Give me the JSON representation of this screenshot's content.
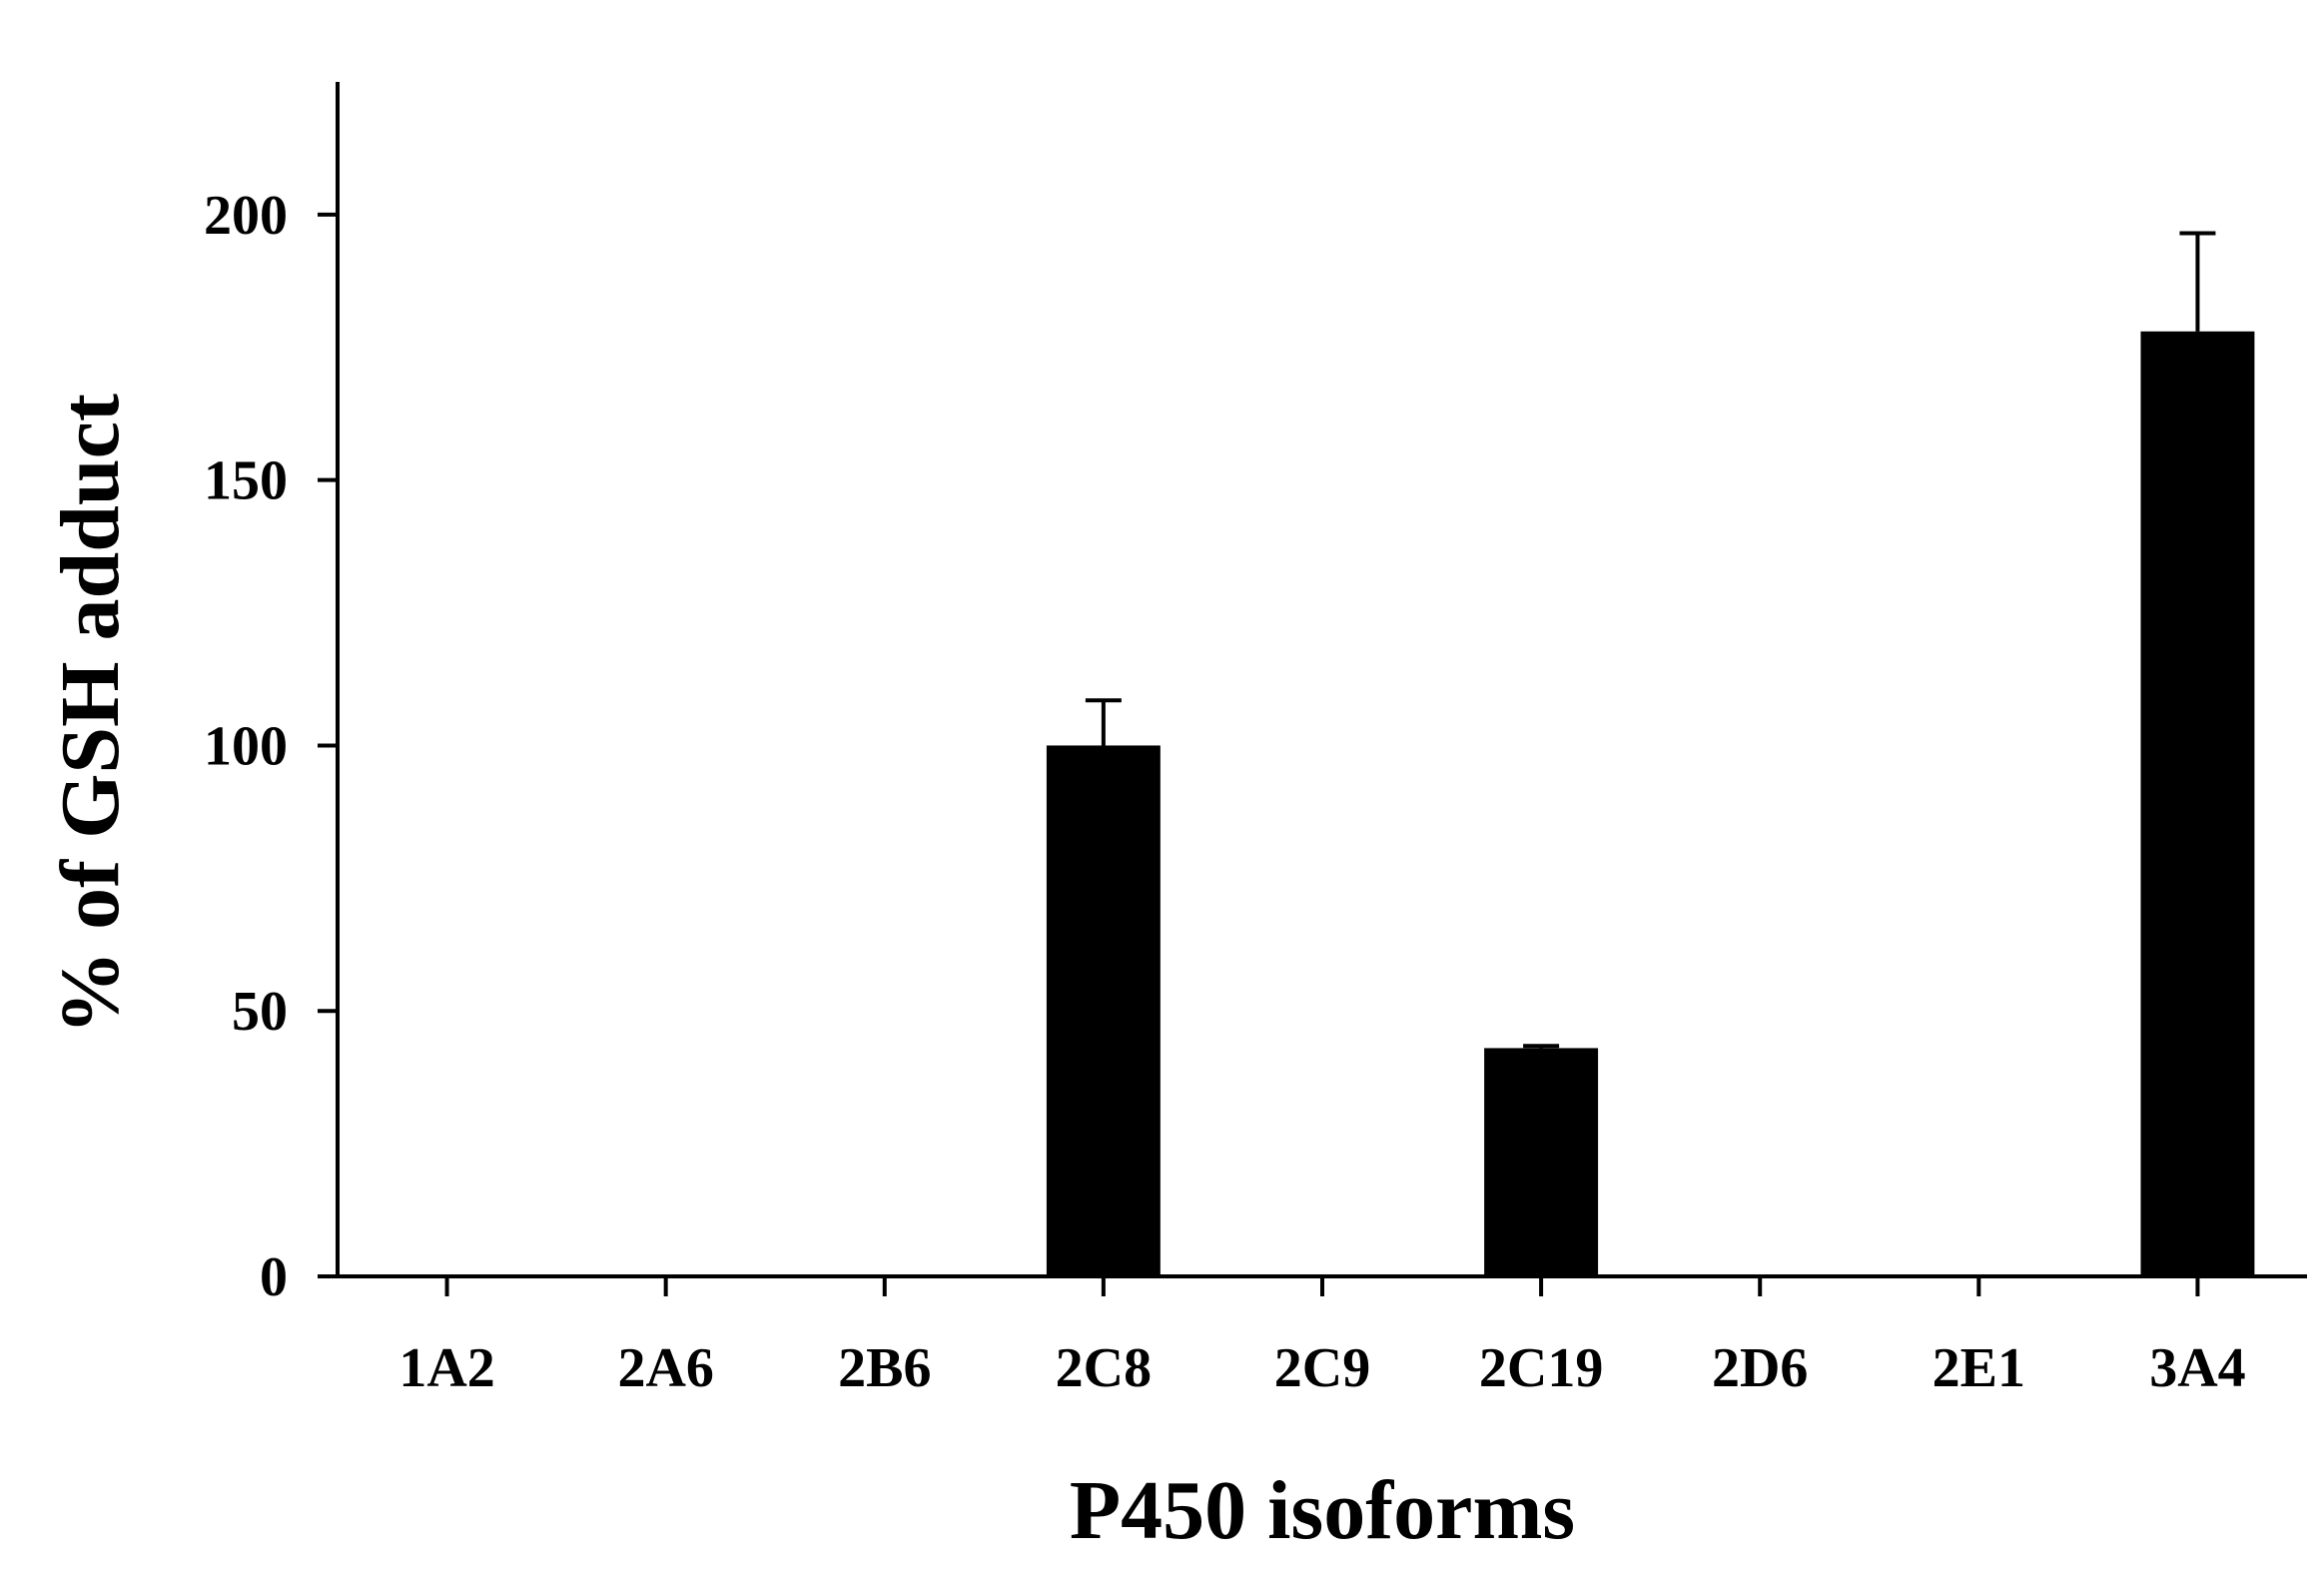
{
  "chart_data": {
    "type": "bar",
    "xlabel": "P450 isoforms",
    "ylabel": "% of GSH adduct",
    "categories": [
      "1A2",
      "2A6",
      "2B6",
      "2C8",
      "2C9",
      "2C19",
      "2D6",
      "2E1",
      "3A4"
    ],
    "values": [
      0,
      0,
      0,
      100,
      0,
      43,
      0,
      0,
      178
    ],
    "errors": [
      0,
      0,
      0,
      8.5,
      0,
      0.4,
      0,
      0,
      18.5
    ],
    "ylim": [
      0,
      225
    ],
    "yticks": [
      "0",
      "50",
      "100",
      "150",
      "200"
    ],
    "grid": false,
    "legend": "none",
    "bar_color": "#000000"
  }
}
